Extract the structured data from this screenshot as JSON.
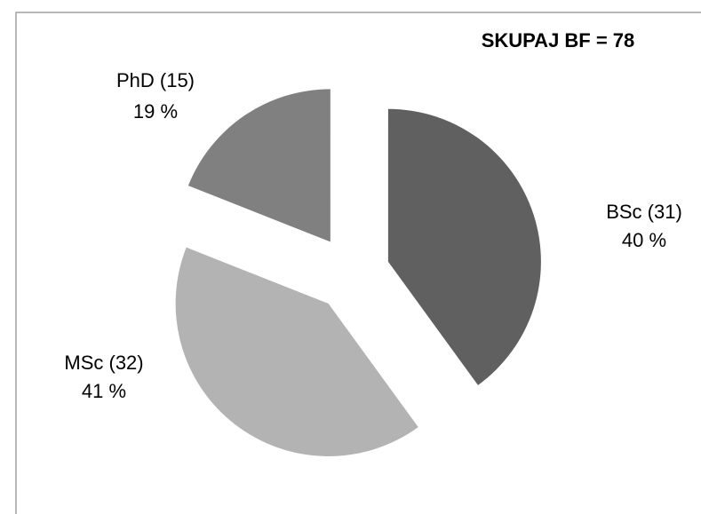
{
  "chart_data": {
    "type": "pie",
    "title": "SKUPAJ BF = 78",
    "categories": [
      "BSc (31)",
      "MSc (32)",
      "PhD (15)"
    ],
    "values": [
      40,
      41,
      19
    ],
    "value_labels": [
      "40 %",
      "41 %",
      "19 %"
    ],
    "colors": [
      "#606060",
      "#b3b3b3",
      "#808080"
    ]
  }
}
